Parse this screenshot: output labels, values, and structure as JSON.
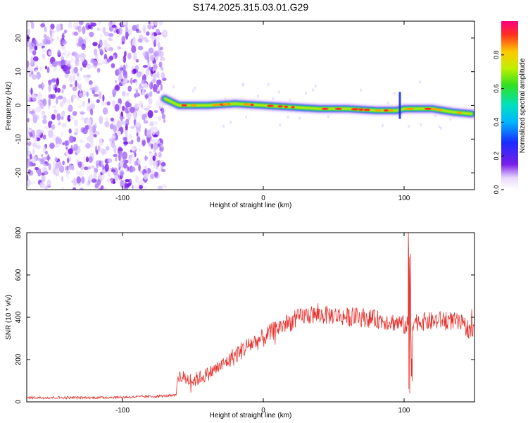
{
  "chart_data": [
    {
      "type": "heatmap",
      "title": "S174.2025.315.03.01.G29",
      "xlabel": "Height of straight line (km)",
      "ylabel": "Frequency (Hz)",
      "xlim": [
        -168,
        150
      ],
      "ylim": [
        -25,
        25
      ],
      "x_ticks": [
        -100,
        0,
        100
      ],
      "x_tick_labels": [
        "-100",
        "0",
        "100"
      ],
      "y_ticks": [
        20,
        10,
        0,
        -10,
        -20
      ],
      "y_tick_labels": [
        "20",
        "10",
        "0",
        "-10",
        "-20"
      ],
      "noise_region_x": [
        -168,
        -70
      ],
      "signal_ridge": {
        "x": [
          -70,
          -60,
          -40,
          -20,
          0,
          20,
          40,
          60,
          80,
          95,
          100,
          120,
          135,
          148
        ],
        "frequency_hz": [
          2,
          0,
          0,
          0.5,
          0,
          -0.5,
          -1,
          -1,
          -1.5,
          -1.5,
          -1,
          -1,
          -2,
          -2.5
        ],
        "annotation": "spike near x=97"
      },
      "colorbar": {
        "label": "Normalized spectral amplitude",
        "range": [
          0,
          1
        ],
        "ticks": [
          0.0,
          0.2,
          0.4,
          0.6,
          0.8
        ],
        "tick_labels": [
          "0.0",
          "0.2",
          "0.4",
          "0.6",
          "0.8"
        ]
      }
    },
    {
      "type": "line",
      "xlabel": "Height of straight line (km)",
      "ylabel": "SNR (10 * v/v)",
      "xlim": [
        -168,
        150
      ],
      "ylim": [
        0,
        800
      ],
      "x_ticks": [
        -100,
        0,
        100
      ],
      "x_tick_labels": [
        "-100",
        "0",
        "100"
      ],
      "y_ticks": [
        0,
        200,
        400,
        600,
        800
      ],
      "y_tick_labels": [
        "0",
        "200",
        "400",
        "600",
        "800"
      ],
      "series": [
        {
          "name": "SNR",
          "color": "#e8302b",
          "x": [
            -168,
            -120,
            -100,
            -80,
            -62,
            -60,
            -50,
            -40,
            -30,
            -20,
            -10,
            0,
            10,
            20,
            30,
            40,
            50,
            60,
            70,
            80,
            90,
            98,
            100,
            103,
            106,
            110,
            120,
            130,
            140,
            150
          ],
          "values": [
            20,
            20,
            22,
            25,
            30,
            120,
            100,
            130,
            170,
            220,
            270,
            300,
            350,
            380,
            410,
            410,
            410,
            400,
            400,
            390,
            380,
            370,
            360,
            800,
            40,
            380,
            380,
            390,
            370,
            330
          ]
        }
      ]
    }
  ],
  "colors": {
    "noise_purple": "#7a1fe8",
    "signal_red": "#e8302b",
    "frame": "#000000"
  }
}
